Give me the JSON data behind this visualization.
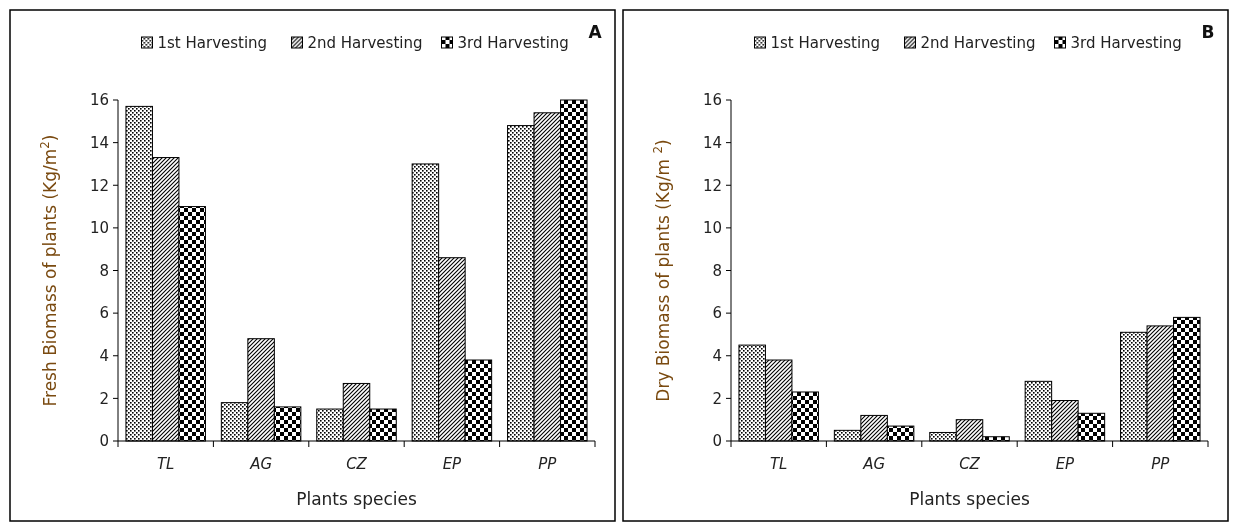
{
  "chart_data": [
    {
      "type": "bar",
      "title": "A",
      "xlabel": "Plants species",
      "ylabel": "Fresh Biomass of plants  (Kg/m$^{2}$)",
      "categories": [
        "TL",
        "AG",
        "CZ",
        "EP",
        "PP"
      ],
      "ylim": [
        0,
        16
      ],
      "yticks": [
        0,
        2,
        4,
        6,
        8,
        10,
        12,
        14,
        16
      ],
      "legend": "top",
      "grid": false,
      "series": [
        {
          "name": "1st Harvesting",
          "color": "#000000",
          "values": [
            15.7,
            1.8,
            1.5,
            13.0,
            14.8
          ]
        },
        {
          "name": "2nd Harvesting",
          "color": "#000000",
          "values": [
            13.3,
            4.8,
            2.7,
            8.6,
            15.4
          ]
        },
        {
          "name": "3rd Harvesting",
          "color": "#000000",
          "values": [
            11.0,
            1.6,
            1.5,
            3.8,
            16.0
          ]
        }
      ]
    },
    {
      "type": "bar",
      "title": "B",
      "xlabel": "Plants species",
      "ylabel": "Dry Biomass of plants (Kg/m $^{2}$)",
      "categories": [
        "TL",
        "AG",
        "CZ",
        "EP",
        "PP"
      ],
      "ylim": [
        0,
        16
      ],
      "yticks": [
        0,
        2,
        4,
        6,
        8,
        10,
        12,
        14,
        16
      ],
      "legend": "top",
      "grid": false,
      "series": [
        {
          "name": "1st Harvesting",
          "color": "#000000",
          "values": [
            4.5,
            0.5,
            0.4,
            2.8,
            5.1
          ]
        },
        {
          "name": "2nd Harvesting",
          "color": "#000000",
          "values": [
            3.8,
            1.2,
            1.0,
            1.9,
            5.4
          ]
        },
        {
          "name": "3rd Harvesting",
          "color": "#000000",
          "values": [
            2.3,
            0.7,
            0.2,
            1.3,
            5.8
          ]
        }
      ]
    }
  ]
}
